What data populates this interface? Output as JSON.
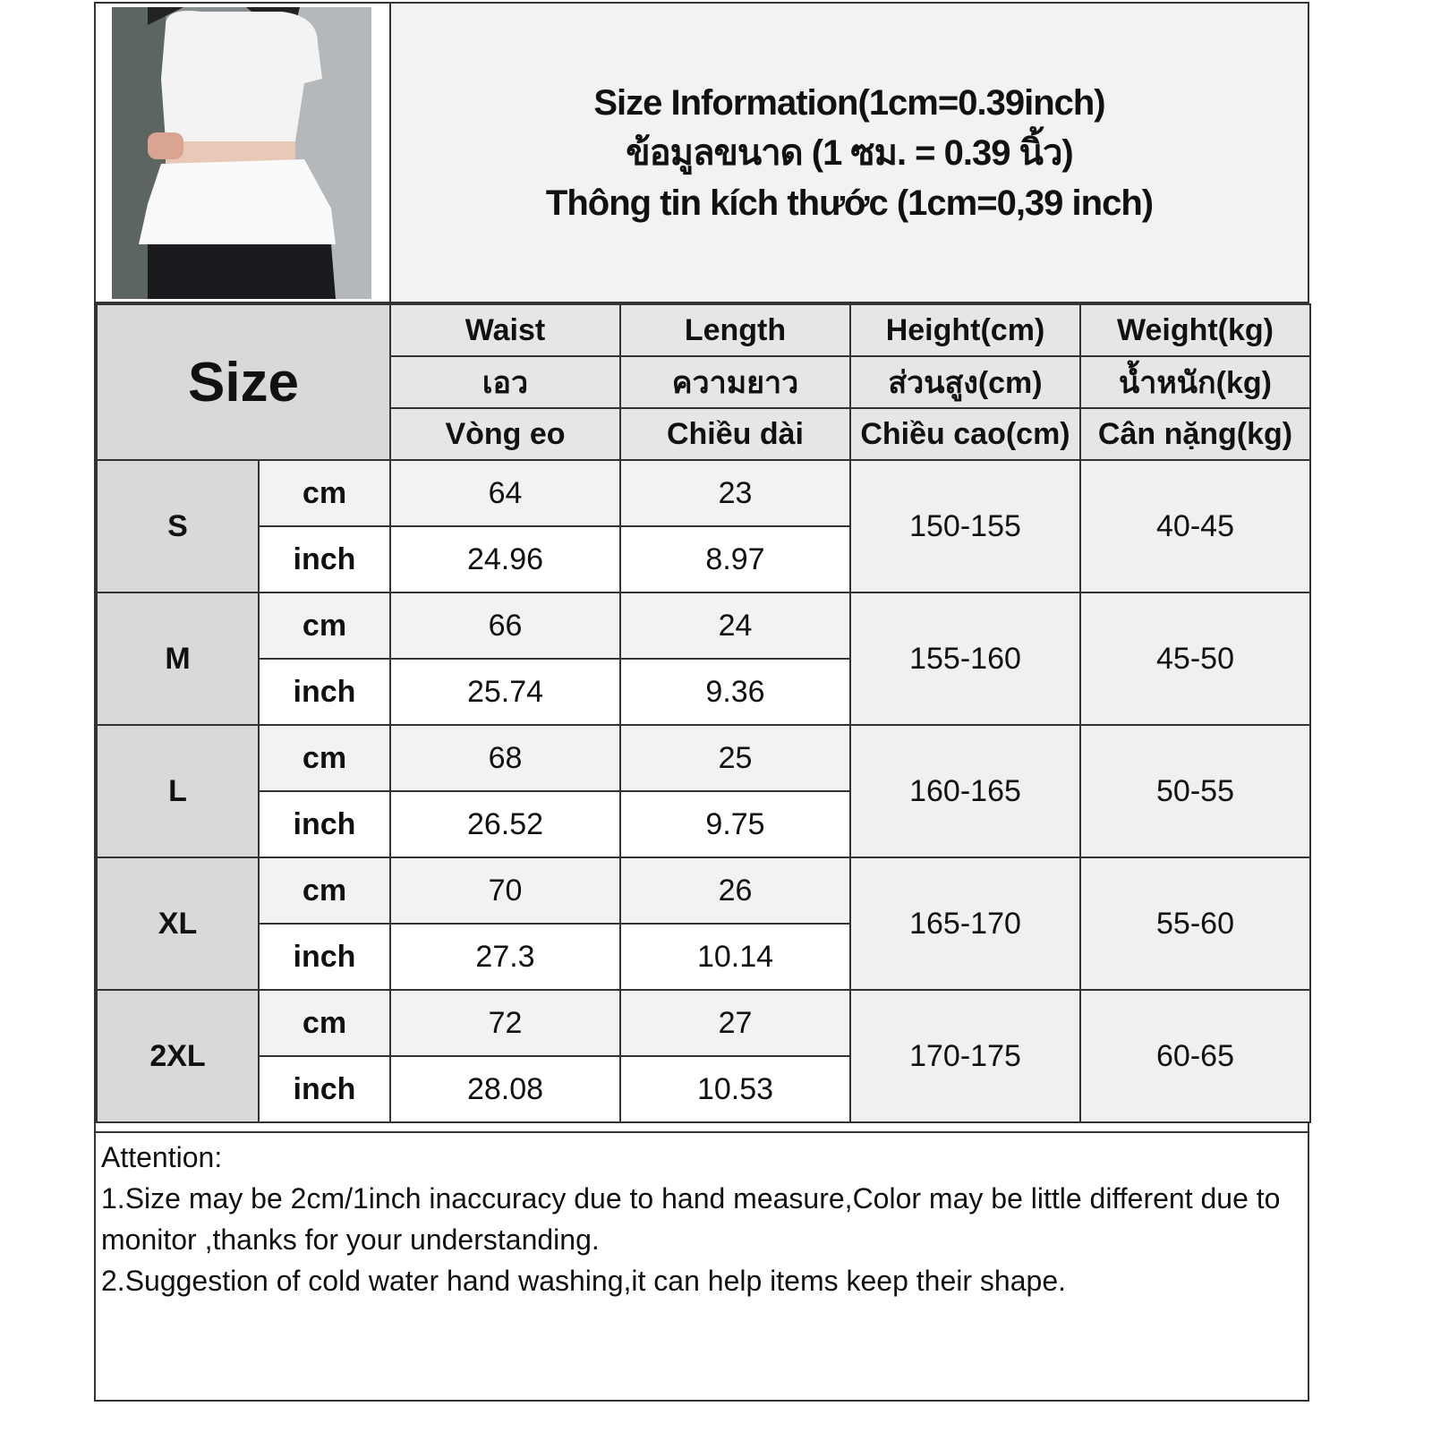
{
  "title_lines": [
    "Size Information(1cm=0.39inch)",
    "ข้อมูลขนาด (1 ซม. = 0.39 นิ้ว)",
    "Thông tin kích thước (1cm=0,39 inch)"
  ],
  "size_header": "Size",
  "columns": [
    {
      "en": "Waist",
      "th": "เอว",
      "vi": "Vòng eo"
    },
    {
      "en": "Length",
      "th": "ความยาว",
      "vi": "Chiều dài"
    },
    {
      "en": "Height(cm)",
      "th": "ส่วนสูง(cm)",
      "vi": "Chiều cao(cm)"
    },
    {
      "en": "Weight(kg)",
      "th": "น้ำหนัก(kg)",
      "vi": "Cân nặng(kg)"
    }
  ],
  "units": {
    "cm": "cm",
    "inch": "inch"
  },
  "rows": [
    {
      "size": "S",
      "waist_cm": "64",
      "length_cm": "23",
      "waist_in": "24.96",
      "length_in": "8.97",
      "height": "150-155",
      "weight": "40-45"
    },
    {
      "size": "M",
      "waist_cm": "66",
      "length_cm": "24",
      "waist_in": "25.74",
      "length_in": "9.36",
      "height": "155-160",
      "weight": "45-50"
    },
    {
      "size": "L",
      "waist_cm": "68",
      "length_cm": "25",
      "waist_in": "26.52",
      "length_in": "9.75",
      "height": "160-165",
      "weight": "50-55"
    },
    {
      "size": "XL",
      "waist_cm": "70",
      "length_cm": "26",
      "waist_in": "27.3",
      "length_in": "10.14",
      "height": "165-170",
      "weight": "55-60"
    },
    {
      "size": "2XL",
      "waist_cm": "72",
      "length_cm": "27",
      "waist_in": "28.08",
      "length_in": "10.53",
      "height": "170-175",
      "weight": "60-65"
    }
  ],
  "notes": {
    "heading": "Attention:",
    "line1": "1.Size may be 2cm/1inch inaccuracy due to hand measure,Color may be little different due to monitor ,thanks for your understanding.",
    "line2": "2.Suggestion of cold water hand washing,it can help items keep their shape."
  }
}
